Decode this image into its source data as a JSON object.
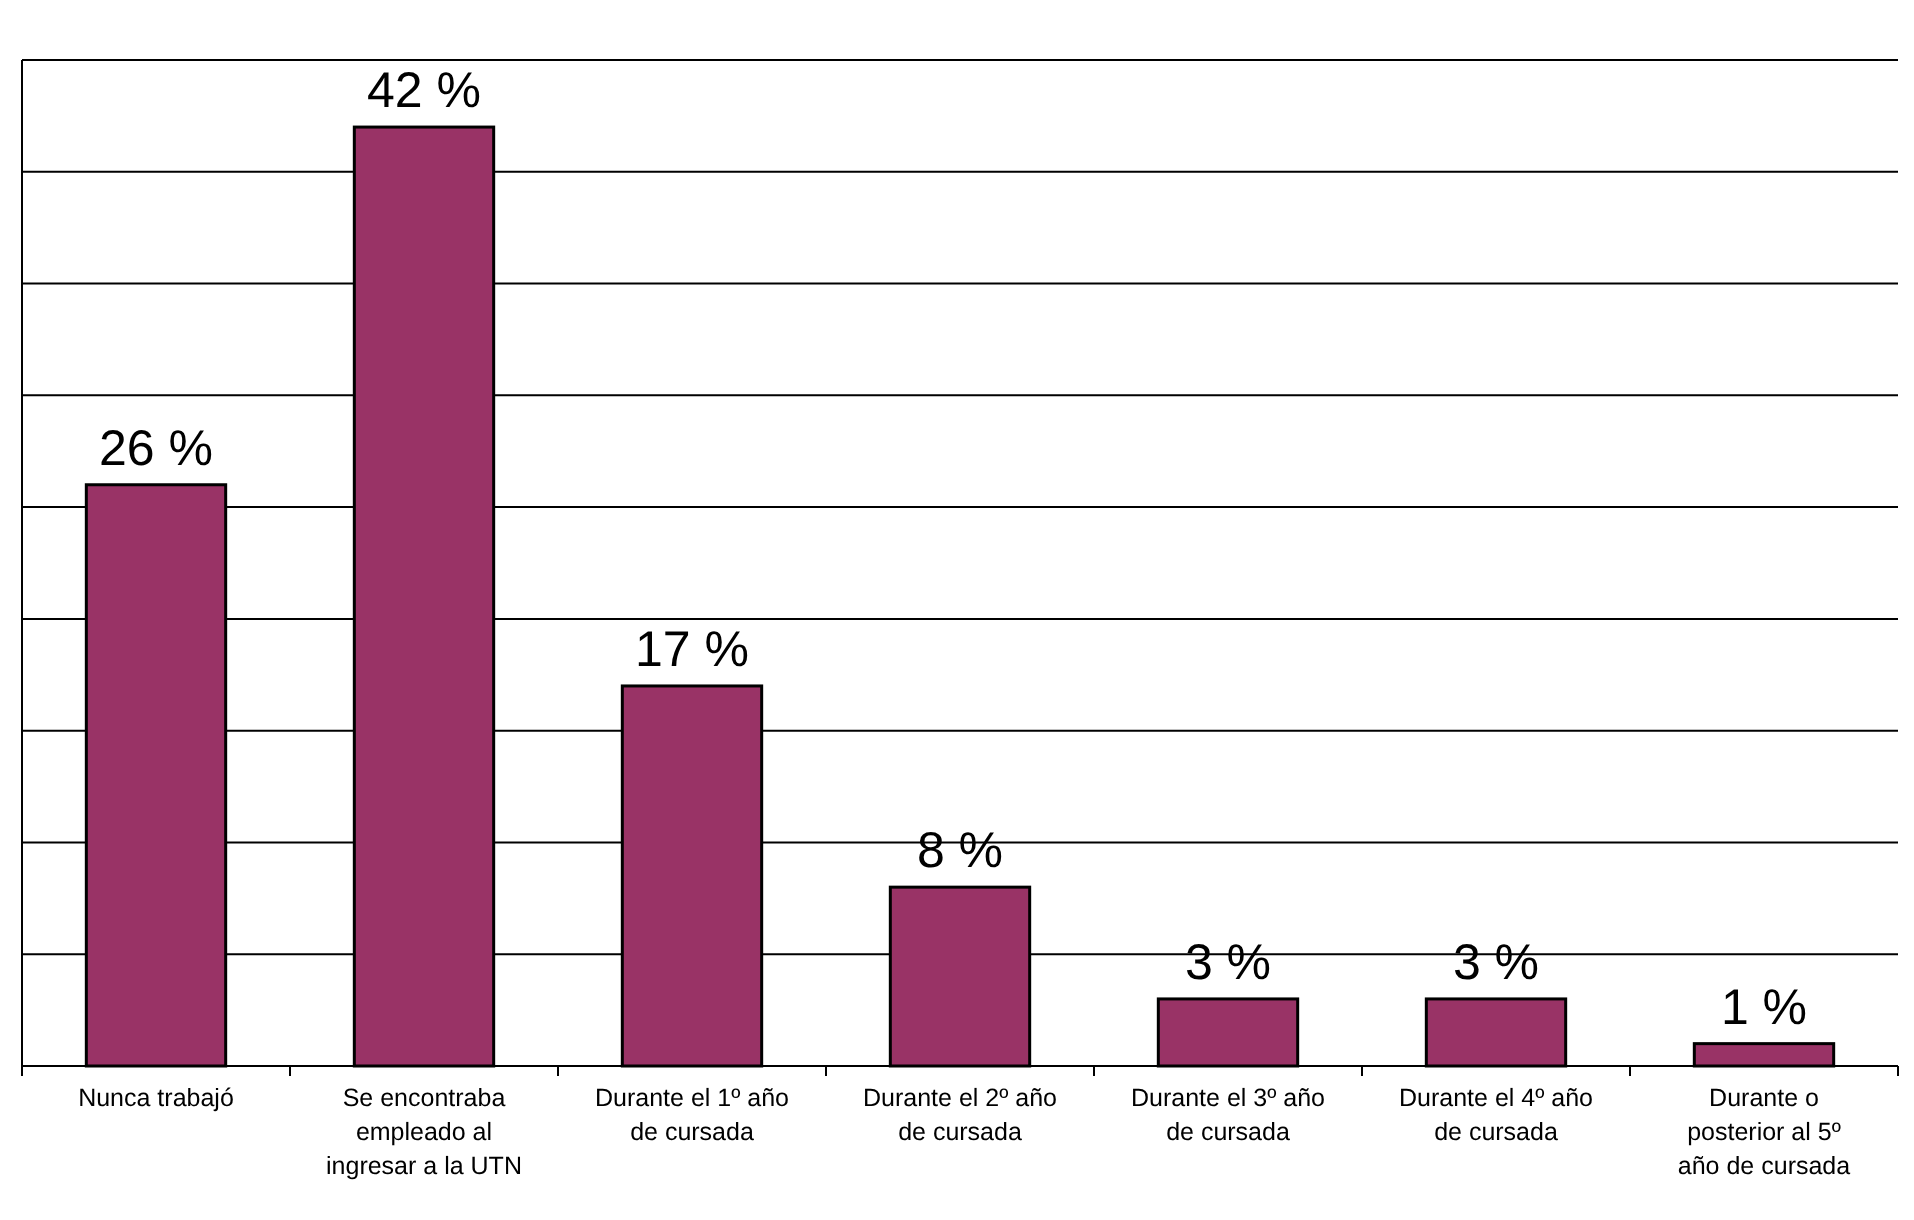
{
  "chart_data": {
    "type": "bar",
    "categories": [
      "Nunca trabajó",
      "Se encontraba\nempleado al\ningresar a la UTN",
      "Durante el 1º año\nde cursada",
      "Durante el 2º año\nde cursada",
      "Durante el 3º año\nde cursada",
      "Durante el 4º año\nde cursada",
      "Durante o\nposterior al 5º\naño de cursada"
    ],
    "values": [
      26,
      42,
      17,
      8,
      3,
      3,
      1
    ],
    "color": "#993366",
    "ylim": [
      0,
      45
    ],
    "yticks": [
      {
        "value": 0,
        "label": null
      },
      {
        "value": 5,
        "label": null
      },
      {
        "value": 10,
        "label": null
      },
      {
        "value": 15,
        "label": null
      },
      {
        "value": 20,
        "label": null
      },
      {
        "value": 25,
        "label": null
      },
      {
        "value": 30,
        "label": null
      },
      {
        "value": 35,
        "label": null
      },
      {
        "value": 40,
        "label": null
      },
      {
        "value": 45,
        "label": null
      }
    ],
    "value_labels": [
      "26 %",
      "42 %",
      "17 %",
      "8 %",
      "3 %",
      "3 %",
      "1 %"
    ],
    "grid": "y",
    "tick_labels": "x"
  }
}
